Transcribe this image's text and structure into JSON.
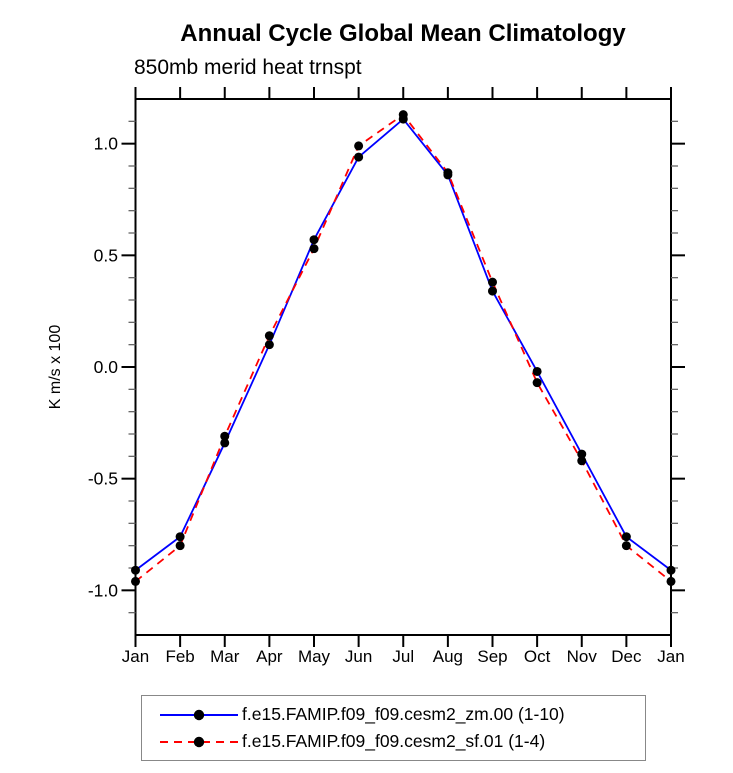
{
  "title": "Annual Cycle Global Mean Climatology",
  "subtitle": "850mb merid heat trnspt",
  "chart_data": {
    "type": "line",
    "title": "Annual Cycle Global Mean Climatology",
    "subtitle": "850mb merid heat trnspt",
    "xlabel": "",
    "ylabel": "K m/s x 100",
    "categories": [
      "Jan",
      "Feb",
      "Mar",
      "Apr",
      "May",
      "Jun",
      "Jul",
      "Aug",
      "Sep",
      "Oct",
      "Nov",
      "Dec",
      "Jan"
    ],
    "series": [
      {
        "name": "f.e15.FAMIP.f09_f09.cesm2_zm.00 (1-10)",
        "color": "#0000ff",
        "style": "solid",
        "values": [
          -0.91,
          -0.76,
          -0.34,
          0.1,
          0.57,
          0.94,
          1.11,
          0.86,
          0.34,
          -0.02,
          -0.39,
          -0.76,
          -0.91
        ]
      },
      {
        "name": "f.e15.FAMIP.f09_f09.cesm2_sf.01 (1-4)",
        "color": "#ff0000",
        "style": "dashed",
        "values": [
          -0.96,
          -0.8,
          -0.31,
          0.14,
          0.53,
          0.99,
          1.13,
          0.87,
          0.38,
          -0.07,
          -0.42,
          -0.8,
          -0.96
        ]
      }
    ],
    "marker": {
      "shape": "circle",
      "color": "#000000"
    },
    "ylim": [
      -1.2,
      1.2
    ],
    "ytick_major": [
      1.0,
      0.5,
      0.0,
      -0.5,
      -1.0
    ],
    "ytick_labels": [
      "1.0",
      "0.5",
      "0.0",
      "-0.5",
      "-1.0"
    ],
    "ytick_minor_step": 0.1,
    "grid": false,
    "legend_position": "bottom",
    "axis_color": "#000000",
    "minor_tick_color": "#666666"
  }
}
